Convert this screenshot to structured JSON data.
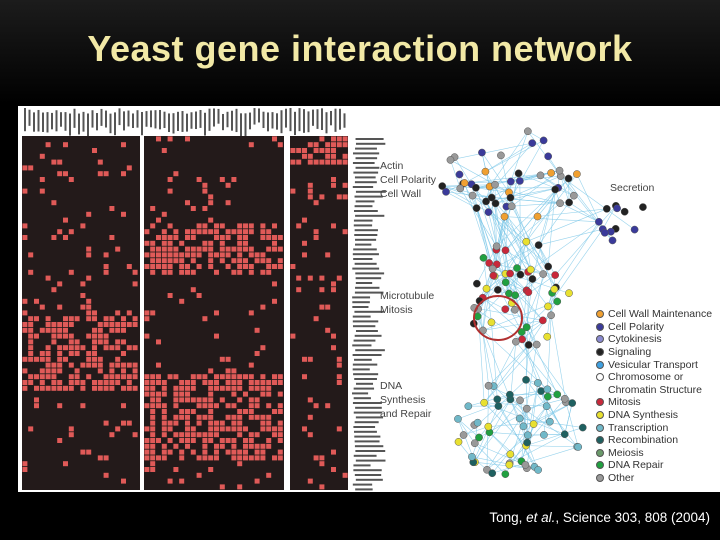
{
  "title": "Yeast gene interaction network",
  "network": {
    "cluster_labels": [
      {
        "id": "actin",
        "text": "Actin"
      },
      {
        "id": "cell-polarity",
        "text": "Cell Polarity"
      },
      {
        "id": "cell-wall",
        "text": "Cell Wall"
      },
      {
        "id": "secretion",
        "text": "Secretion"
      },
      {
        "id": "microtubule",
        "text": "Microtubule"
      },
      {
        "id": "mitosis",
        "text": "Mitosis"
      },
      {
        "id": "dna",
        "text": "DNA"
      },
      {
        "id": "synthesis",
        "text": "Synthesis"
      },
      {
        "id": "and-repair",
        "text": "and Repair"
      }
    ],
    "legend": [
      {
        "label": "Cell Wall Maintenance",
        "color": "#f0a030"
      },
      {
        "label": "Cell Polarity",
        "color": "#3a3a9a"
      },
      {
        "label": "Cytokinesis",
        "color": "#8a8ad0"
      },
      {
        "label": "Signaling",
        "color": "#222222"
      },
      {
        "label": "Vesicular Transport",
        "color": "#3fa0e0"
      },
      {
        "label": "Chromosome or",
        "color": "#ffffff"
      },
      {
        "label": "Chromatin Structure",
        "color": ""
      },
      {
        "label": "Mitosis",
        "color": "#c8283a"
      },
      {
        "label": "DNA Synthesis",
        "color": "#e8e030"
      },
      {
        "label": "Transcription",
        "color": "#70b8c8"
      },
      {
        "label": "Recombination",
        "color": "#1e6060"
      },
      {
        "label": "Meiosis",
        "color": "#6a9a6a"
      },
      {
        "label": "DNA Repair",
        "color": "#20a040"
      },
      {
        "label": "Other",
        "color": "#999999"
      }
    ]
  },
  "citation": {
    "authors_prefix": "Tong, ",
    "et_al": "et al.",
    "rest": ", Science 303, 808 (2004)"
  },
  "colors": {
    "title": "#f2e9a6",
    "matrix_cell": "#e05a58",
    "matrix_background": "#231a1a",
    "edge": "#7ec8e8"
  }
}
